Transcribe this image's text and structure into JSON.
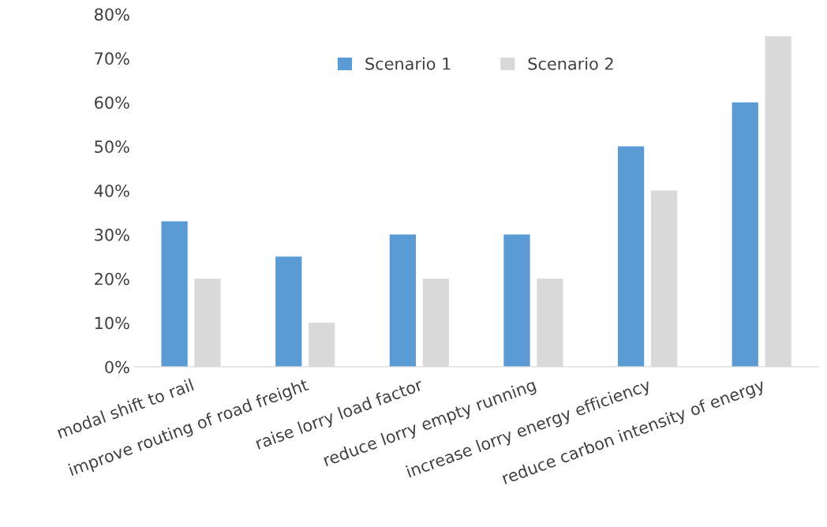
{
  "chart_data": {
    "type": "bar",
    "categories": [
      "modal shift to rail",
      "improve routing of road freight",
      "raise lorry load factor",
      "reduce lorry empty running",
      "increase lorry energy efficiency",
      "reduce carbon intensity of energy"
    ],
    "series": [
      {
        "name": "Scenario 1",
        "color": "#5b9bd5",
        "values": [
          33,
          25,
          30,
          30,
          50,
          60
        ]
      },
      {
        "name": "Scenario 2",
        "color": "#d9d9d9",
        "values": [
          20,
          10,
          20,
          20,
          40,
          75
        ]
      }
    ],
    "ylim": [
      0,
      80
    ],
    "yticks": [
      {
        "value": 0,
        "label": "0%"
      },
      {
        "value": 10,
        "label": "10%"
      },
      {
        "value": 20,
        "label": "20%"
      },
      {
        "value": 30,
        "label": "30%"
      },
      {
        "value": 40,
        "label": "40%"
      },
      {
        "value": 50,
        "label": "50%"
      },
      {
        "value": 60,
        "label": "60%"
      },
      {
        "value": 70,
        "label": "70%"
      },
      {
        "value": 80,
        "label": "80%"
      }
    ],
    "grid": false,
    "legend": "top"
  }
}
